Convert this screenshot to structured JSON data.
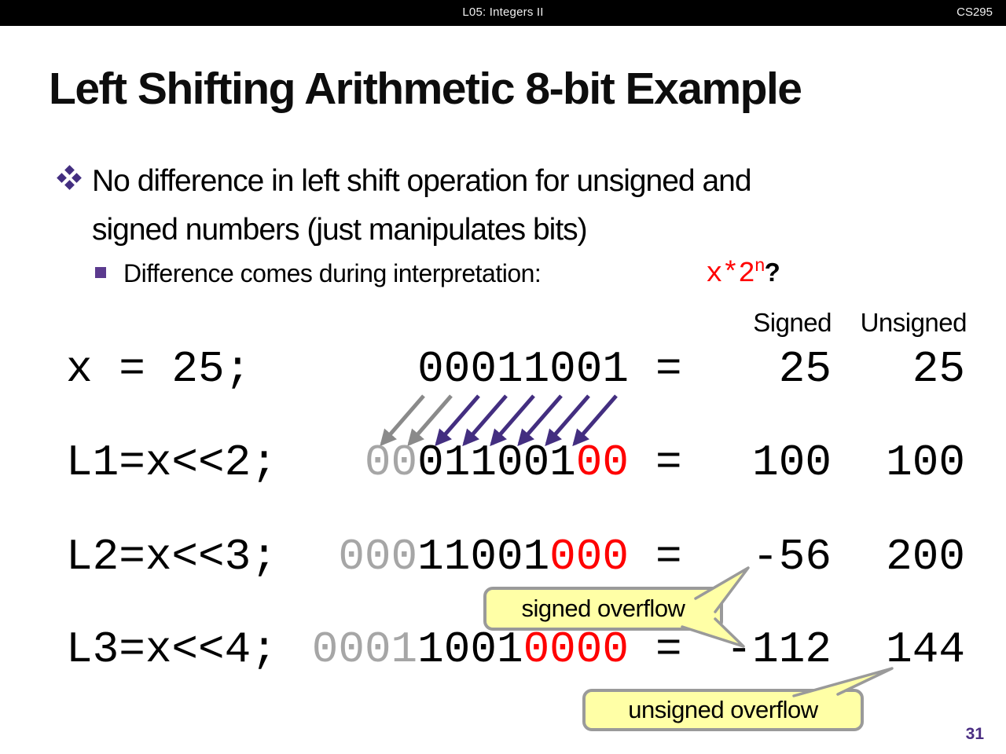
{
  "header": {
    "lecture": "L05:  Integers II",
    "course": "CS295"
  },
  "title": "Left Shifting Arithmetic 8-bit Example",
  "bullet": {
    "text": "No difference in left shift operation for unsigned and\nsigned numbers (just manipulates bits)"
  },
  "sub_bullet": {
    "text": "Difference comes during interpretation:",
    "expr": "x*2",
    "expr_sup": "n",
    "question": "?"
  },
  "table": {
    "signed_header": "Signed",
    "unsigned_header": "Unsigned",
    "rows": [
      {
        "label": "x = 25;",
        "bits": [
          {
            "text": "00011001",
            "color": "black"
          }
        ],
        "equals": "=",
        "signed": "25",
        "unsigned": "25"
      },
      {
        "label": "L1=x<<2;",
        "bits": [
          {
            "text": "00",
            "color": "gray"
          },
          {
            "text": "011001",
            "color": "black"
          },
          {
            "text": "00",
            "color": "red"
          }
        ],
        "equals": "=",
        "signed": "100",
        "unsigned": "100"
      },
      {
        "label": "L2=x<<3;",
        "bits": [
          {
            "text": "000",
            "color": "gray"
          },
          {
            "text": "11001",
            "color": "black"
          },
          {
            "text": "000",
            "color": "red"
          }
        ],
        "equals": "=",
        "signed": "-56",
        "unsigned": "200"
      },
      {
        "label": "L3=x<<4;",
        "bits": [
          {
            "text": "0001",
            "color": "gray"
          },
          {
            "text": "1001",
            "color": "black"
          },
          {
            "text": "0000",
            "color": "red"
          }
        ],
        "equals": "=",
        "signed": "-112",
        "unsigned": "144"
      }
    ]
  },
  "arrows": {
    "colors": [
      "gray",
      "gray",
      "purple",
      "purple",
      "purple",
      "purple",
      "purple",
      "purple"
    ]
  },
  "callouts": {
    "signed": "signed overflow",
    "unsigned": "unsigned overflow"
  },
  "page_number": "31",
  "colors": {
    "purple": "#432e80",
    "red": "#ff0000",
    "gray_bits": "#a6a6a6",
    "gray_arrow": "#8a8a8a",
    "callout_bg": "#ffffa6",
    "callout_border": "#9a9a9a"
  }
}
